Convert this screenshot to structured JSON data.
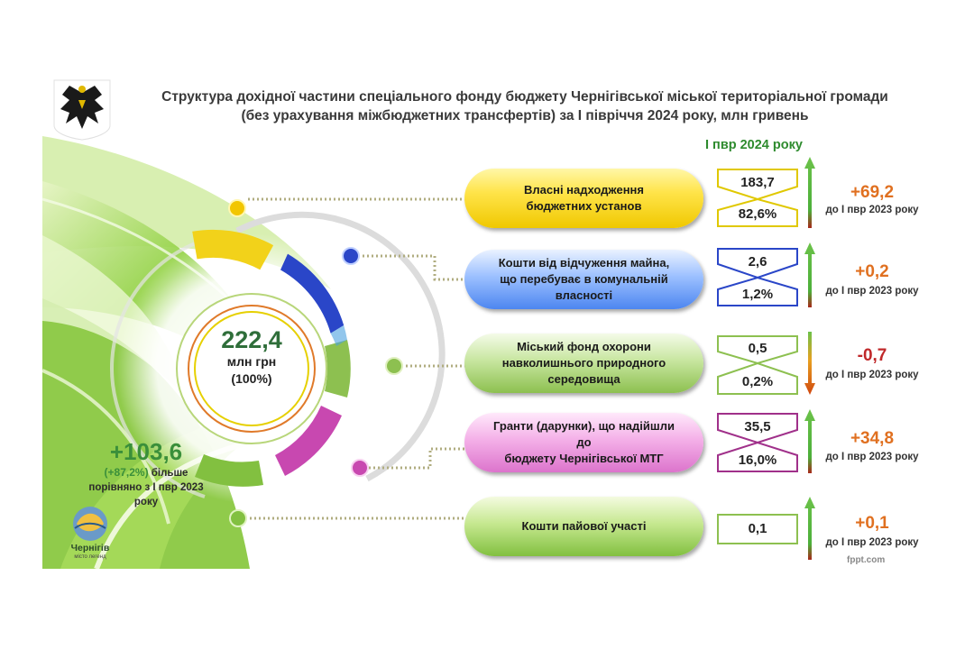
{
  "title": {
    "line1": "Структура дохідної частини спеціального фонду бюджету Чернігівської міської територіальної громади",
    "line2": "(без урахування міжбюджетних трансфертів) за І півріччя 2024 року, млн гривень"
  },
  "column_header": "І пвр 2024 року",
  "center": {
    "total": "222,4",
    "unit": "млн грн",
    "percent": "(100%)"
  },
  "growth": {
    "value": "+103,6",
    "percent": "(+87,2%)",
    "text1": "більше",
    "text2": "порівняно з І пвр 2023 року"
  },
  "logo": {
    "city": "Чернігів",
    "slogan": "місто легенд"
  },
  "credit": "fppt.com",
  "items": [
    {
      "name_l1": "Власні надходження",
      "name_l2": "бюджетних установ",
      "name_l3": "",
      "amount": "183,7",
      "share": "82,6%",
      "delta": "+69,2",
      "delta_note": "до І пвр 2023 року",
      "direction": "up",
      "color": "#f2c600"
    },
    {
      "name_l1": "Кошти від відчуження майна,",
      "name_l2": "що перебуває в комунальній",
      "name_l3": "власності",
      "amount": "2,6",
      "share": "1,2%",
      "delta": "+0,2",
      "delta_note": "до І пвр 2023 року",
      "direction": "up",
      "color": "#2c4fc8"
    },
    {
      "name_l1": "Міський фонд охорони",
      "name_l2": "навколишнього природного",
      "name_l3": "середовища",
      "amount": "0,5",
      "share": "0,2%",
      "delta": "-0,7",
      "delta_note": "до І пвр 2023 року",
      "direction": "down",
      "color": "#8dc050"
    },
    {
      "name_l1": "Гранти (дарунки), що надійшли до",
      "name_l2": "бюджету Чернігівської МТГ",
      "name_l3": "",
      "amount": "35,5",
      "share": "16,0%",
      "delta": "+34,8",
      "delta_note": "до І пвр 2023 року",
      "direction": "up",
      "color": "#c040a8"
    },
    {
      "name_l1": "Кошти пайової участі",
      "name_l2": "",
      "name_l3": "",
      "amount": "0,1",
      "share": "",
      "delta": "+0,1",
      "delta_note": "до І пвр 2023 року",
      "direction": "up",
      "color": "#82c040"
    }
  ],
  "colors": {
    "up_delta": "#e07020",
    "down_delta": "#c0282a",
    "up_arrow": "#4caf3a",
    "down_arrow": "#e06a10",
    "title": "#3a3a3a"
  }
}
